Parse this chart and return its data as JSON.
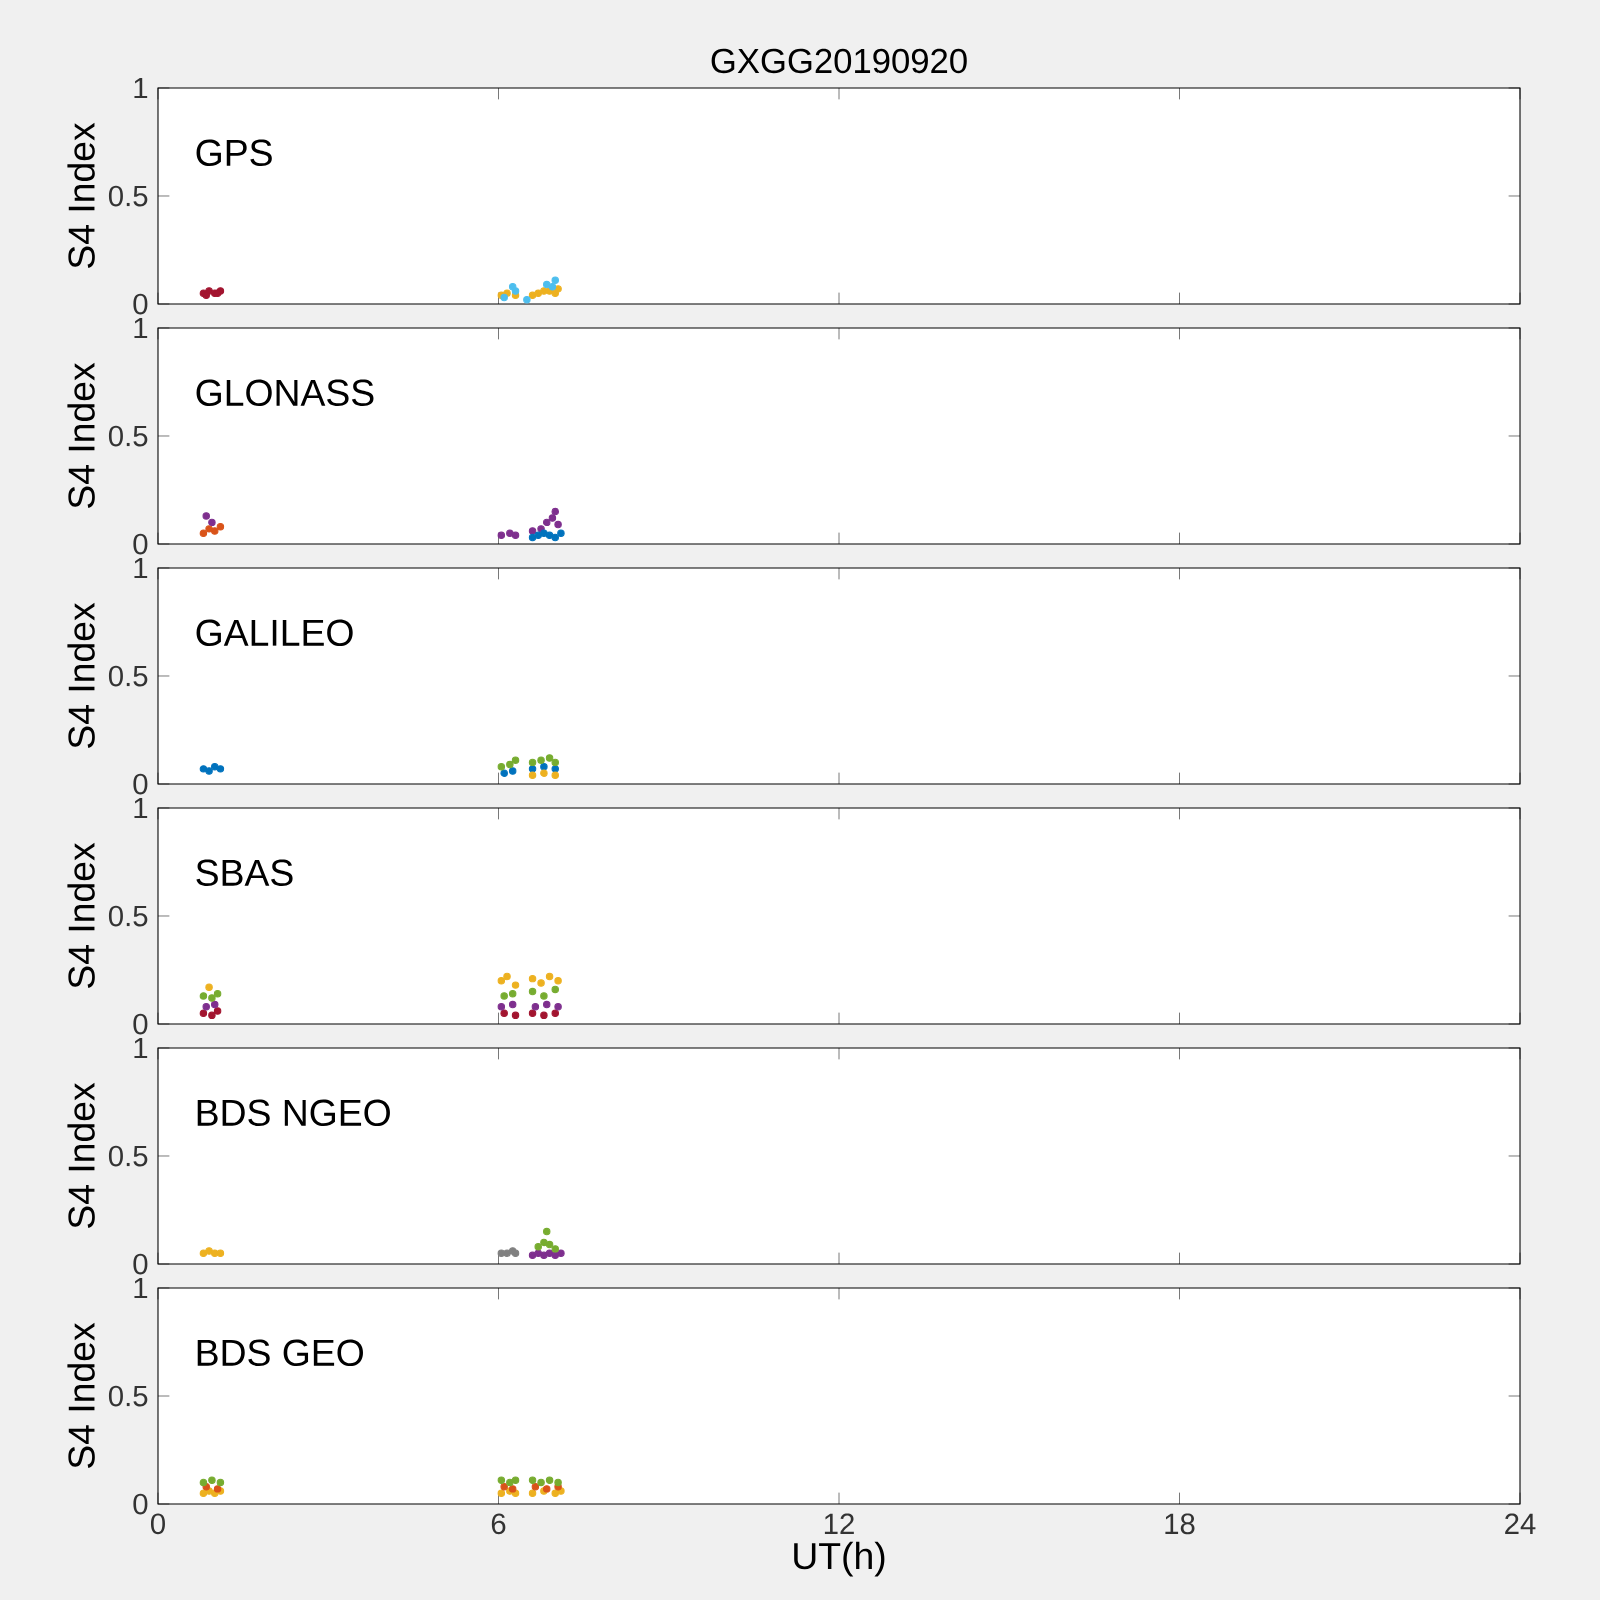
{
  "chart_data": [
    {
      "type": "scatter",
      "title": "GXGG20190920",
      "ylabel": "S4 Index",
      "annotations": [
        "GPS"
      ],
      "xlim": [
        0,
        24
      ],
      "xticks": [
        0,
        6,
        12,
        18,
        24
      ],
      "ylim": [
        0,
        1
      ],
      "yticks": [
        0,
        0.5,
        1
      ],
      "tick_labels": "y",
      "marker": "circle",
      "series": [
        {
          "color": "#a2142f",
          "x": [
            0.8,
            0.9,
            1.0,
            1.1,
            0.85,
            1.05
          ],
          "values": [
            0.05,
            0.06,
            0.05,
            0.06,
            0.04,
            0.05
          ]
        },
        {
          "color": "#edb120",
          "x": [
            6.05,
            6.15,
            6.3,
            6.6,
            6.7,
            6.8,
            6.9,
            7.0,
            7.05
          ],
          "values": [
            0.04,
            0.05,
            0.04,
            0.04,
            0.05,
            0.06,
            0.06,
            0.05,
            0.07
          ]
        },
        {
          "color": "#4dbeee",
          "x": [
            6.1,
            6.25,
            6.3,
            6.5,
            6.85,
            6.95,
            7.0
          ],
          "values": [
            0.03,
            0.08,
            0.06,
            0.02,
            0.09,
            0.08,
            0.11
          ]
        }
      ]
    },
    {
      "type": "scatter",
      "ylabel": "S4 Index",
      "annotations": [
        "GLONASS"
      ],
      "xlim": [
        0,
        24
      ],
      "xticks": [
        0,
        6,
        12,
        18,
        24
      ],
      "ylim": [
        0,
        1
      ],
      "yticks": [
        0,
        0.5,
        1
      ],
      "tick_labels": "y",
      "marker": "circle",
      "series": [
        {
          "color": "#d95319",
          "x": [
            0.8,
            0.9,
            1.0,
            1.1
          ],
          "values": [
            0.05,
            0.07,
            0.06,
            0.08
          ]
        },
        {
          "color": "#7e2f8e",
          "x": [
            0.85,
            0.95,
            6.05,
            6.2,
            6.3,
            6.6,
            6.75,
            6.85,
            6.95,
            7.0,
            7.05
          ],
          "values": [
            0.13,
            0.1,
            0.04,
            0.05,
            0.04,
            0.06,
            0.07,
            0.1,
            0.12,
            0.15,
            0.09
          ]
        },
        {
          "color": "#0072bd",
          "x": [
            6.6,
            6.7,
            6.8,
            6.9,
            7.0,
            7.1
          ],
          "values": [
            0.03,
            0.04,
            0.05,
            0.04,
            0.03,
            0.05
          ]
        }
      ]
    },
    {
      "type": "scatter",
      "ylabel": "S4 Index",
      "annotations": [
        "GALILEO"
      ],
      "xlim": [
        0,
        24
      ],
      "xticks": [
        0,
        6,
        12,
        18,
        24
      ],
      "ylim": [
        0,
        1
      ],
      "yticks": [
        0,
        0.5,
        1
      ],
      "tick_labels": "y",
      "marker": "circle",
      "series": [
        {
          "color": "#0072bd",
          "x": [
            0.8,
            0.9,
            1.0,
            1.1,
            6.1,
            6.25,
            6.6,
            6.8,
            7.0
          ],
          "values": [
            0.07,
            0.06,
            0.08,
            0.07,
            0.05,
            0.06,
            0.07,
            0.08,
            0.07
          ]
        },
        {
          "color": "#77ac30",
          "x": [
            6.05,
            6.2,
            6.3,
            6.6,
            6.75,
            6.9,
            7.0
          ],
          "values": [
            0.08,
            0.09,
            0.11,
            0.1,
            0.11,
            0.12,
            0.1
          ]
        },
        {
          "color": "#edb120",
          "x": [
            6.6,
            6.8,
            7.0
          ],
          "values": [
            0.04,
            0.05,
            0.04
          ]
        }
      ]
    },
    {
      "type": "scatter",
      "ylabel": "S4 Index",
      "annotations": [
        "SBAS"
      ],
      "xlim": [
        0,
        24
      ],
      "xticks": [
        0,
        6,
        12,
        18,
        24
      ],
      "ylim": [
        0,
        1
      ],
      "yticks": [
        0,
        0.5,
        1
      ],
      "tick_labels": "y",
      "marker": "circle",
      "series": [
        {
          "color": "#a2142f",
          "x": [
            0.8,
            0.95,
            1.05,
            6.1,
            6.3,
            6.6,
            6.8,
            7.0
          ],
          "values": [
            0.05,
            0.04,
            0.06,
            0.05,
            0.04,
            0.05,
            0.04,
            0.05
          ]
        },
        {
          "color": "#7e2f8e",
          "x": [
            0.85,
            1.0,
            6.05,
            6.25,
            6.65,
            6.85,
            7.05
          ],
          "values": [
            0.08,
            0.09,
            0.08,
            0.09,
            0.08,
            0.09,
            0.08
          ]
        },
        {
          "color": "#77ac30",
          "x": [
            0.8,
            0.95,
            1.05,
            6.1,
            6.25,
            6.6,
            6.8,
            7.0
          ],
          "values": [
            0.13,
            0.12,
            0.14,
            0.13,
            0.14,
            0.15,
            0.13,
            0.16
          ]
        },
        {
          "color": "#edb120",
          "x": [
            0.9,
            6.05,
            6.15,
            6.3,
            6.6,
            6.75,
            6.9,
            7.05
          ],
          "values": [
            0.17,
            0.2,
            0.22,
            0.18,
            0.21,
            0.19,
            0.22,
            0.2
          ]
        }
      ]
    },
    {
      "type": "scatter",
      "ylabel": "S4 Index",
      "annotations": [
        "BDS NGEO"
      ],
      "xlim": [
        0,
        24
      ],
      "xticks": [
        0,
        6,
        12,
        18,
        24
      ],
      "ylim": [
        0,
        1
      ],
      "yticks": [
        0,
        0.5,
        1
      ],
      "tick_labels": "y",
      "marker": "circle",
      "series": [
        {
          "color": "#edb120",
          "x": [
            0.8,
            0.9,
            1.0,
            1.1
          ],
          "values": [
            0.05,
            0.06,
            0.05,
            0.05
          ]
        },
        {
          "color": "#808080",
          "x": [
            6.05,
            6.15,
            6.25,
            6.3
          ],
          "values": [
            0.05,
            0.05,
            0.06,
            0.05
          ]
        },
        {
          "color": "#7e2f8e",
          "x": [
            6.6,
            6.7,
            6.8,
            6.9,
            7.0,
            7.1
          ],
          "values": [
            0.04,
            0.05,
            0.04,
            0.05,
            0.04,
            0.05
          ]
        },
        {
          "color": "#77ac30",
          "x": [
            6.7,
            6.8,
            6.85,
            6.9,
            7.0
          ],
          "values": [
            0.08,
            0.1,
            0.15,
            0.09,
            0.07
          ]
        }
      ]
    },
    {
      "type": "scatter",
      "ylabel": "S4 Index",
      "xlabel": "UT(h)",
      "annotations": [
        "BDS GEO"
      ],
      "xlim": [
        0,
        24
      ],
      "xticks": [
        0,
        6,
        12,
        18,
        24
      ],
      "ylim": [
        0,
        1
      ],
      "yticks": [
        0,
        0.5,
        1
      ],
      "marker": "circle",
      "series": [
        {
          "color": "#edb120",
          "x": [
            0.8,
            0.9,
            1.0,
            1.1,
            6.05,
            6.2,
            6.3,
            6.6,
            6.8,
            7.0,
            7.1
          ],
          "values": [
            0.05,
            0.06,
            0.05,
            0.06,
            0.05,
            0.06,
            0.05,
            0.05,
            0.06,
            0.05,
            0.06
          ]
        },
        {
          "color": "#d95319",
          "x": [
            0.85,
            1.05,
            6.1,
            6.25,
            6.65,
            6.85,
            7.05
          ],
          "values": [
            0.08,
            0.07,
            0.08,
            0.07,
            0.08,
            0.07,
            0.08
          ]
        },
        {
          "color": "#77ac30",
          "x": [
            0.8,
            0.95,
            1.1,
            6.05,
            6.2,
            6.3,
            6.6,
            6.75,
            6.9,
            7.05
          ],
          "values": [
            0.1,
            0.11,
            0.1,
            0.11,
            0.1,
            0.11,
            0.11,
            0.1,
            0.11,
            0.1
          ]
        }
      ]
    }
  ]
}
